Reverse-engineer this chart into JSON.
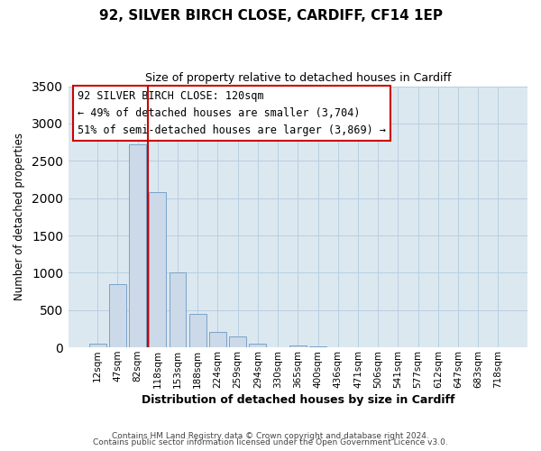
{
  "title": "92, SILVER BIRCH CLOSE, CARDIFF, CF14 1EP",
  "subtitle": "Size of property relative to detached houses in Cardiff",
  "xlabel": "Distribution of detached houses by size in Cardiff",
  "ylabel": "Number of detached properties",
  "footer_lines": [
    "Contains HM Land Registry data © Crown copyright and database right 2024.",
    "Contains public sector information licensed under the Open Government Licence v3.0."
  ],
  "bar_labels": [
    "12sqm",
    "47sqm",
    "82sqm",
    "118sqm",
    "153sqm",
    "188sqm",
    "224sqm",
    "259sqm",
    "294sqm",
    "330sqm",
    "365sqm",
    "400sqm",
    "436sqm",
    "471sqm",
    "506sqm",
    "541sqm",
    "577sqm",
    "612sqm",
    "647sqm",
    "683sqm",
    "718sqm"
  ],
  "bar_values": [
    55,
    850,
    2720,
    2075,
    1010,
    455,
    210,
    145,
    55,
    0,
    25,
    15,
    0,
    0,
    0,
    0,
    0,
    0,
    0,
    0,
    0
  ],
  "bar_color": "#ccd9e8",
  "bar_edgecolor": "#7aa3c8",
  "ylim": [
    0,
    3500
  ],
  "yticks": [
    0,
    500,
    1000,
    1500,
    2000,
    2500,
    3000,
    3500
  ],
  "property_line_color": "#cc0000",
  "annotation_box_text": "92 SILVER BIRCH CLOSE: 120sqm\n← 49% of detached houses are smaller (3,704)\n51% of semi-detached houses are larger (3,869) →",
  "grid_color": "#b8cfe0",
  "background_color": "#ffffff",
  "plot_background": "#dce8f0"
}
